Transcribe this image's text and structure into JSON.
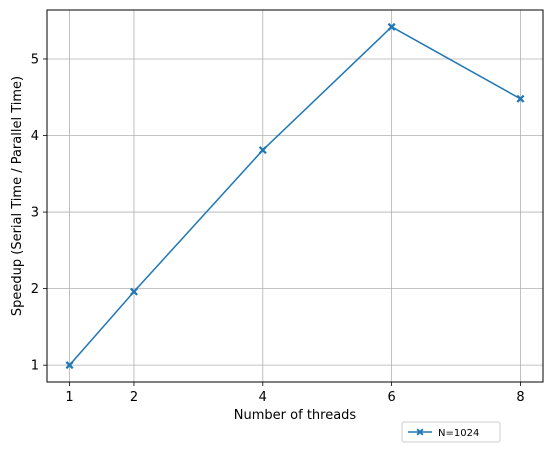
{
  "chart_data": {
    "type": "line",
    "title": "",
    "xlabel": "Number of threads",
    "ylabel": "Speedup (Serial Time / Parallel Time)",
    "x": [
      1,
      2,
      4,
      6,
      8
    ],
    "xticks": [
      1,
      2,
      4,
      6,
      8
    ],
    "yticks": [
      1,
      2,
      3,
      4,
      5
    ],
    "xlim": [
      0.65,
      8.35
    ],
    "ylim": [
      0.78,
      5.64
    ],
    "grid": true,
    "legend_position": "below plot, right",
    "series": [
      {
        "name": "N=1024",
        "color": "#1f77b4",
        "marker": "x-filled",
        "values": [
          1.0,
          1.96,
          3.81,
          5.42,
          4.48
        ]
      }
    ]
  }
}
